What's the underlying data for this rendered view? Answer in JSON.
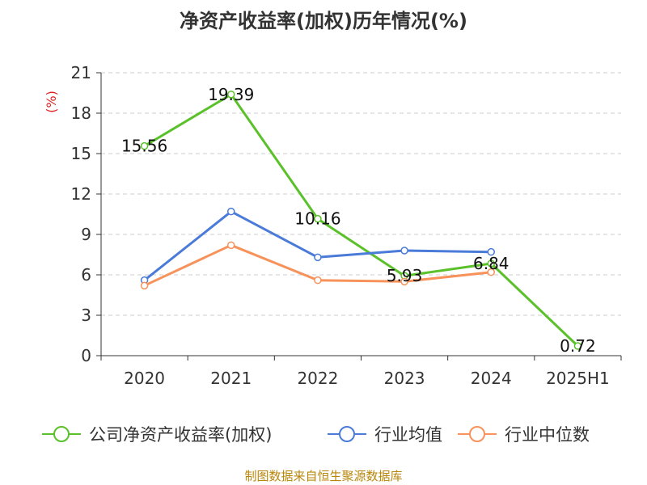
{
  "title": "净资产收益率(加权)历年情况(%)",
  "source": "制图数据来自恒生聚源数据库",
  "colors": {
    "company": "#5ac12a",
    "industry_avg": "#4a7bd8",
    "industry_median": "#f7925a",
    "ylabel": "#dd2222",
    "grid": "#cccccc",
    "axis": "#333333"
  },
  "chart_data": {
    "type": "line",
    "title": "净资产收益率(加权)历年情况(%)",
    "ylabel": "(%)",
    "xlabel": "",
    "categories": [
      "2020",
      "2021",
      "2022",
      "2023",
      "2024",
      "2025H1"
    ],
    "ylim": [
      0,
      21
    ],
    "yticks": [
      0,
      3,
      6,
      9,
      12,
      15,
      18,
      21
    ],
    "grid": true,
    "legend_position": "bottom",
    "series": [
      {
        "name": "公司净资产收益率(加权)",
        "color": "#5ac12a",
        "show_labels": true,
        "values": [
          15.56,
          19.39,
          10.16,
          5.93,
          6.84,
          0.72
        ],
        "labels": [
          "15.56",
          "19.39",
          "10.16",
          "5.93",
          "6.84",
          "0.72"
        ]
      },
      {
        "name": "行业均值",
        "color": "#4a7bd8",
        "show_labels": false,
        "values": [
          5.6,
          10.7,
          7.3,
          7.8,
          7.7,
          null
        ]
      },
      {
        "name": "行业中位数",
        "color": "#f7925a",
        "show_labels": false,
        "values": [
          5.2,
          8.2,
          5.6,
          5.5,
          6.2,
          null
        ]
      }
    ]
  }
}
